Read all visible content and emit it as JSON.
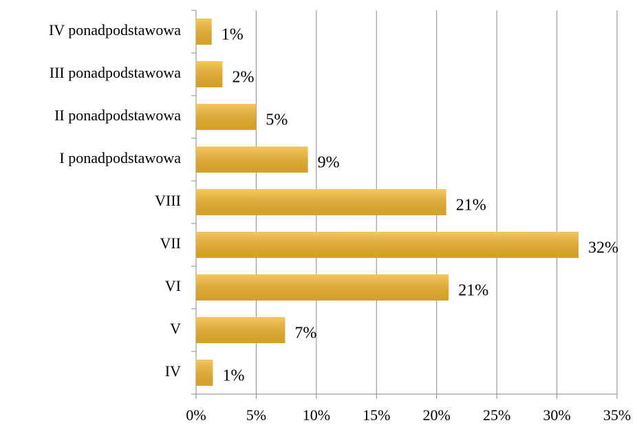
{
  "chart_data": {
    "type": "bar",
    "orientation": "horizontal",
    "categories": [
      "IV ponadpodstawowa",
      "III ponadpodstawowa",
      "II ponadpodstawowa",
      "I ponadpodstawowa",
      "VIII",
      "VII",
      "VI",
      "V",
      "IV"
    ],
    "values": [
      1.3,
      2.2,
      5.0,
      9.3,
      20.8,
      31.8,
      21.0,
      7.4,
      1.4
    ],
    "value_labels": [
      "1%",
      "2%",
      "5%",
      "9%",
      "21%",
      "32%",
      "21%",
      "7%",
      "1%"
    ],
    "color": "#f2b52c",
    "xlim": [
      0,
      35
    ],
    "xticks": [
      {
        "value": 0,
        "label": "0%"
      },
      {
        "value": 5,
        "label": "5%"
      },
      {
        "value": 10,
        "label": "10%"
      },
      {
        "value": 15,
        "label": "15%"
      },
      {
        "value": 20,
        "label": "20%"
      },
      {
        "value": 25,
        "label": "25%"
      },
      {
        "value": 30,
        "label": "30%"
      },
      {
        "value": 35,
        "label": "35%"
      }
    ],
    "grid": true
  }
}
